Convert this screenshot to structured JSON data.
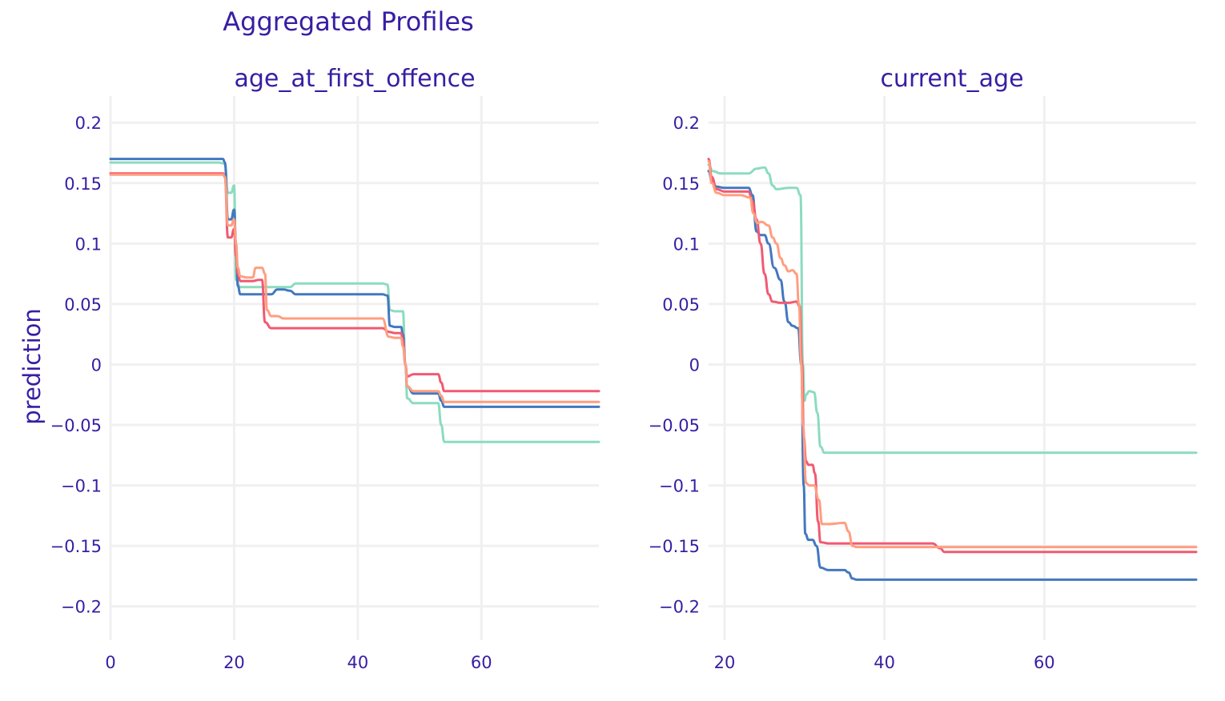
{
  "chart_data": {
    "type": "line",
    "title": "Aggregated Profiles",
    "ylabel": "prediction",
    "colors": [
      "#8bdcbe",
      "#4378bf",
      "#f05a71",
      "#ff9e80"
    ],
    "y_ticks": [
      0.2,
      0.15,
      0.1,
      0.05,
      0,
      -0.05,
      -0.1,
      -0.15,
      -0.2
    ],
    "y_tick_labels": [
      "0.2",
      "0.15",
      "0.1",
      "0.05",
      "0",
      "−0.05",
      "−0.1",
      "−0.15",
      "−0.2"
    ],
    "ylim": [
      -0.228,
      0.222
    ],
    "grid": true,
    "legend": "none",
    "panels": [
      {
        "subtitle": "age_at_first_offence",
        "xlim": [
          0,
          79
        ],
        "x_ticks": [
          0,
          20,
          40,
          60
        ],
        "x_tick_labels": [
          "0",
          "20",
          "40",
          "60"
        ],
        "series": [
          {
            "color": "#8bdcbe",
            "x": [
              0,
              17.5,
              18.5,
              19,
              19.5,
              20,
              20.3,
              21,
              23,
              25,
              27,
              29,
              30,
              35,
              40,
              44,
              44.8,
              45.2,
              46,
              47,
              47.3,
              47.7,
              48,
              49,
              52,
              53,
              53.5,
              54,
              55,
              79
            ],
            "y": [
              0.167,
              0.167,
              0.166,
              0.142,
              0.142,
              0.148,
              0.07,
              0.064,
              0.064,
              0.064,
              0.064,
              0.064,
              0.067,
              0.067,
              0.067,
              0.067,
              0.066,
              0.045,
              0.044,
              0.044,
              0.044,
              0.0,
              -0.028,
              -0.032,
              -0.032,
              -0.032,
              -0.05,
              -0.064,
              -0.064,
              -0.064
            ]
          },
          {
            "color": "#4378bf",
            "x": [
              0,
              17.5,
              18.2,
              18.5,
              19,
              19.5,
              20,
              20.3,
              20.6,
              21,
              25,
              26,
              27,
              28,
              29,
              30,
              35,
              40,
              44,
              44.8,
              45.2,
              46,
              47,
              47.3,
              47.7,
              48,
              49,
              52,
              53,
              53.5,
              54,
              55,
              79
            ],
            "y": [
              0.17,
              0.17,
              0.17,
              0.167,
              0.12,
              0.12,
              0.128,
              0.1,
              0.065,
              0.058,
              0.058,
              0.058,
              0.062,
              0.062,
              0.061,
              0.058,
              0.058,
              0.058,
              0.058,
              0.057,
              0.032,
              0.031,
              0.031,
              0.025,
              0.0,
              -0.018,
              -0.024,
              -0.024,
              -0.024,
              -0.03,
              -0.035,
              -0.035,
              -0.035
            ]
          },
          {
            "color": "#f05a71",
            "x": [
              0,
              17.5,
              18.2,
              18.5,
              19,
              19.5,
              20,
              20.3,
              20.6,
              21,
              23,
              24,
              24.5,
              25,
              26,
              30,
              35,
              40,
              44,
              45,
              46,
              47,
              47.3,
              47.7,
              48,
              49,
              52,
              53,
              53.5,
              54,
              55,
              79
            ],
            "y": [
              0.158,
              0.158,
              0.158,
              0.155,
              0.105,
              0.105,
              0.112,
              0.09,
              0.075,
              0.069,
              0.069,
              0.07,
              0.07,
              0.035,
              0.03,
              0.03,
              0.03,
              0.03,
              0.03,
              0.027,
              0.026,
              0.026,
              0.02,
              0.0,
              -0.01,
              -0.008,
              -0.008,
              -0.008,
              -0.015,
              -0.022,
              -0.022,
              -0.022
            ]
          },
          {
            "color": "#ff9e80",
            "x": [
              0,
              17.5,
              18.2,
              18.5,
              19,
              19.5,
              20,
              20.3,
              20.6,
              21,
              22,
              23,
              23.5,
              24.5,
              25,
              25.3,
              26,
              27,
              28,
              30,
              35,
              40,
              44,
              45,
              46,
              47,
              47.3,
              47.7,
              48,
              49,
              52,
              53,
              53.5,
              54,
              55,
              79
            ],
            "y": [
              0.157,
              0.157,
              0.157,
              0.155,
              0.115,
              0.115,
              0.12,
              0.1,
              0.08,
              0.073,
              0.072,
              0.072,
              0.08,
              0.08,
              0.075,
              0.045,
              0.04,
              0.04,
              0.038,
              0.038,
              0.038,
              0.038,
              0.038,
              0.023,
              0.022,
              0.022,
              0.015,
              0.0,
              -0.018,
              -0.022,
              -0.022,
              -0.022,
              -0.026,
              -0.031,
              -0.031,
              -0.031
            ]
          }
        ]
      },
      {
        "subtitle": "current_age",
        "xlim": [
          18,
          79
        ],
        "x_ticks": [
          20,
          40,
          60
        ],
        "x_tick_labels": [
          "20",
          "40",
          "60"
        ],
        "series": [
          {
            "color": "#8bdcbe",
            "x": [
              18,
              18.5,
              19.5,
              21,
              23,
              24,
              25,
              25.5,
              26,
              26.5,
              28,
              29,
              29.5,
              29.8,
              30,
              30.2,
              30.6,
              31.2,
              31.6,
              32,
              32.5,
              33,
              40,
              79
            ],
            "y": [
              0.165,
              0.16,
              0.158,
              0.158,
              0.158,
              0.162,
              0.163,
              0.158,
              0.148,
              0.145,
              0.146,
              0.146,
              0.14,
              0.0,
              -0.03,
              -0.025,
              -0.022,
              -0.023,
              -0.04,
              -0.068,
              -0.073,
              -0.073,
              -0.073,
              -0.073
            ]
          },
          {
            "color": "#4378bf",
            "x": [
              18,
              18.4,
              19,
              20,
              23,
              23.5,
              24,
              24.5,
              25,
              25.5,
              26.2,
              27,
              27.5,
              28,
              28.5,
              29.2,
              29.6,
              29.9,
              30.1,
              30.5,
              31,
              31.5,
              32,
              33,
              35,
              35.5,
              36,
              36.5,
              40,
              79
            ],
            "y": [
              0.16,
              0.152,
              0.147,
              0.146,
              0.146,
              0.14,
              0.11,
              0.107,
              0.107,
              0.1,
              0.08,
              0.07,
              0.052,
              0.035,
              0.032,
              0.03,
              0.0,
              -0.1,
              -0.14,
              -0.145,
              -0.145,
              -0.15,
              -0.168,
              -0.17,
              -0.17,
              -0.172,
              -0.177,
              -0.178,
              -0.178,
              -0.178
            ]
          },
          {
            "color": "#f05a71",
            "x": [
              18,
              18.4,
              19,
              20,
              22,
              23,
              23.5,
              24,
              24.5,
              25,
              25.5,
              26,
              27,
              28,
              29,
              29.4,
              29.7,
              29.9,
              30.2,
              30.5,
              31,
              31.3,
              31.7,
              32,
              33,
              45,
              46,
              47,
              47.5,
              79
            ],
            "y": [
              0.17,
              0.155,
              0.145,
              0.143,
              0.143,
              0.143,
              0.135,
              0.12,
              0.1,
              0.075,
              0.058,
              0.052,
              0.051,
              0.051,
              0.052,
              0.048,
              0.0,
              -0.06,
              -0.08,
              -0.083,
              -0.083,
              -0.09,
              -0.13,
              -0.147,
              -0.148,
              -0.148,
              -0.148,
              -0.152,
              -0.155,
              -0.155
            ]
          },
          {
            "color": "#ff9e80",
            "x": [
              18,
              18.4,
              19,
              20,
              21,
              22,
              23.2,
              23.6,
              24.1,
              24.6,
              25.5,
              26,
              26.5,
              27,
              27.5,
              28,
              28.5,
              29,
              29.3,
              29.6,
              29.8,
              30.2,
              30.6,
              31.2,
              31.8,
              32.2,
              33,
              35,
              35.5,
              36,
              36.5,
              40,
              46,
              79
            ],
            "y": [
              0.168,
              0.15,
              0.142,
              0.14,
              0.14,
              0.14,
              0.138,
              0.125,
              0.117,
              0.118,
              0.115,
              0.105,
              0.1,
              0.088,
              0.082,
              0.077,
              0.078,
              0.075,
              0.05,
              0.0,
              -0.05,
              -0.098,
              -0.1,
              -0.1,
              -0.112,
              -0.132,
              -0.132,
              -0.131,
              -0.138,
              -0.15,
              -0.151,
              -0.151,
              -0.151,
              -0.151
            ]
          }
        ]
      }
    ]
  }
}
